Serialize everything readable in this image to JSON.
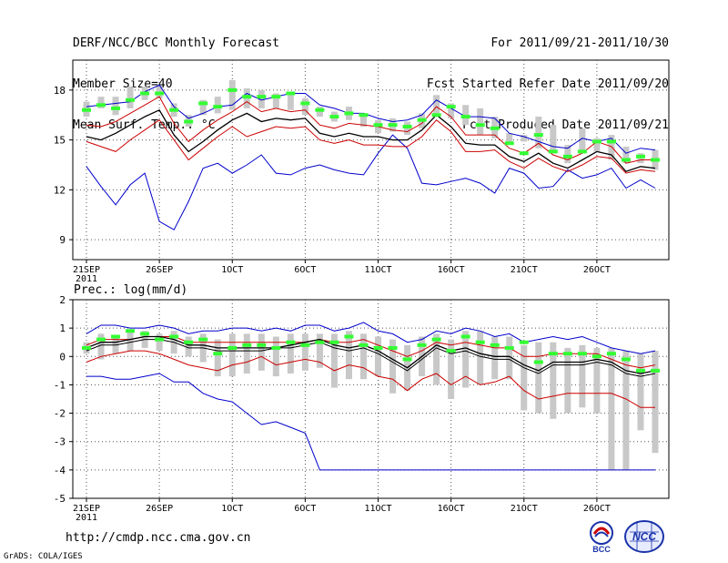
{
  "header": {
    "left": [
      "DERF/NCC/BCC Monthly Forecast",
      "Member Size=40",
      "Mean Surf. Temp.: °C"
    ],
    "right": [
      "For 2011/09/21-2011/10/30",
      "Fcst Started Refer Date 2011/09/20",
      "Fcst Produced Date 2011/09/21"
    ]
  },
  "footer": {
    "url": "http://cmdp.ncc.cma.gov.cn",
    "credit": "GrADS: COLA/IGES",
    "logo_bcc": "BCC",
    "logo_ncc": "NCC"
  },
  "colors": {
    "mean": "#000000",
    "spread": "#cc0000",
    "extreme": "#0000cc",
    "obs": "#33ff33",
    "box": "#c8c8c8"
  },
  "chart_data": [
    {
      "type": "line",
      "title": "Mean Surf. Temp.: °C",
      "xlabels": [
        "21SEP\n2011",
        "26SEP",
        "1OCT",
        "6OCT",
        "11OCT",
        "16OCT",
        "21OCT",
        "26OCT"
      ],
      "xlabel_days": [
        1,
        6,
        11,
        16,
        21,
        26,
        31,
        36
      ],
      "yticks": [
        9,
        12,
        15,
        18
      ],
      "ylim": [
        7.8,
        19.8
      ],
      "days": 40,
      "series": [
        {
          "name": "max",
          "values": [
            17.0,
            17.1,
            17.2,
            17.3,
            17.9,
            18.3,
            17.0,
            16.3,
            16.6,
            17.0,
            17.1,
            17.8,
            17.4,
            17.6,
            17.8,
            17.8,
            17.1,
            16.9,
            16.6,
            16.6,
            16.3,
            16.1,
            16.2,
            16.5,
            17.4,
            16.9,
            16.4,
            16.4,
            16.3,
            15.4,
            15.2,
            14.9,
            14.6,
            14.5,
            15.1,
            14.9,
            15.1,
            14.2,
            14.5,
            14.4
          ]
        },
        {
          "name": "upper",
          "values": [
            15.9,
            15.8,
            16.1,
            16.6,
            17.1,
            17.6,
            16.0,
            14.9,
            15.6,
            16.2,
            16.7,
            17.3,
            16.7,
            16.9,
            16.7,
            16.8,
            15.9,
            15.7,
            16.0,
            15.9,
            15.8,
            15.6,
            15.5,
            16.0,
            17.0,
            16.4,
            15.3,
            15.3,
            15.3,
            14.5,
            14.2,
            14.8,
            14.1,
            13.8,
            14.2,
            14.9,
            14.6,
            13.6,
            13.8,
            13.8
          ]
        },
        {
          "name": "mean",
          "values": [
            15.2,
            15.0,
            15.4,
            15.9,
            16.4,
            16.8,
            15.3,
            14.3,
            14.9,
            15.6,
            16.2,
            16.6,
            16.1,
            16.3,
            16.2,
            16.3,
            15.4,
            15.2,
            15.4,
            15.2,
            15.2,
            15.0,
            15.0,
            15.6,
            16.5,
            15.8,
            14.8,
            14.7,
            14.7,
            14.0,
            13.7,
            14.2,
            13.6,
            13.3,
            13.8,
            14.3,
            14.1,
            13.1,
            13.4,
            13.3
          ]
        },
        {
          "name": "lower",
          "values": [
            14.9,
            14.6,
            14.3,
            15.0,
            15.6,
            16.2,
            15.0,
            13.8,
            14.5,
            15.2,
            15.8,
            15.2,
            15.5,
            15.8,
            15.7,
            15.8,
            15.0,
            14.8,
            15.0,
            14.7,
            14.7,
            14.6,
            14.6,
            15.2,
            16.2,
            15.5,
            14.3,
            14.3,
            14.4,
            13.7,
            13.3,
            13.9,
            13.4,
            13.1,
            13.5,
            14.0,
            13.9,
            13.0,
            13.2,
            13.1
          ]
        },
        {
          "name": "min",
          "values": [
            13.4,
            12.2,
            11.1,
            12.3,
            13.0,
            10.1,
            9.6,
            11.3,
            13.3,
            13.6,
            13.0,
            13.5,
            14.1,
            13.0,
            12.9,
            13.3,
            13.5,
            13.2,
            13.0,
            12.9,
            14.2,
            15.3,
            14.5,
            12.4,
            12.3,
            12.5,
            12.7,
            12.4,
            11.8,
            13.3,
            13.0,
            12.1,
            12.2,
            13.2,
            12.7,
            12.9,
            13.3,
            12.1,
            12.6,
            12.1
          ]
        },
        {
          "name": "obs",
          "values": [
            16.8,
            17.1,
            16.9,
            17.4,
            17.8,
            17.8,
            16.8,
            16.1,
            17.2,
            17.0,
            18.0,
            17.6,
            17.6,
            17.6,
            17.8,
            17.2,
            16.8,
            16.4,
            16.6,
            16.5,
            15.9,
            15.9,
            15.8,
            16.2,
            16.5,
            17.0,
            16.4,
            15.9,
            15.7,
            14.8,
            14.2,
            15.3,
            14.3,
            14.0,
            14.3,
            14.9,
            14.9,
            13.8,
            14.0,
            13.8
          ]
        },
        {
          "name": "box_low",
          "values": [
            16.4,
            16.9,
            16.5,
            16.9,
            17.4,
            17.5,
            16.4,
            15.8,
            16.5,
            16.6,
            16.8,
            16.9,
            16.9,
            16.9,
            16.8,
            16.5,
            16.4,
            16.1,
            16.2,
            15.8,
            15.4,
            15.5,
            15.3,
            15.7,
            16.6,
            16.3,
            15.9,
            15.3,
            15.1,
            14.7,
            14.9,
            14.5,
            14.2,
            13.6,
            14.3,
            14.3,
            13.8,
            13.6,
            13.6,
            13.2
          ]
        },
        {
          "name": "box_high",
          "values": [
            17.3,
            17.6,
            17.6,
            18.2,
            18.2,
            18.3,
            17.2,
            16.5,
            17.4,
            17.6,
            18.6,
            18.1,
            18.0,
            17.8,
            17.9,
            17.5,
            17.0,
            16.7,
            17.0,
            16.6,
            16.2,
            16.3,
            16.1,
            16.6,
            17.7,
            17.2,
            17.1,
            16.9,
            16.4,
            15.4,
            15.3,
            16.4,
            15.9,
            14.7,
            15.7,
            15.1,
            15.3,
            14.6,
            14.2,
            14.4
          ]
        }
      ]
    },
    {
      "type": "line",
      "title": "Prec.: log(mm/d)",
      "xlabels": [
        "21SEP\n2011",
        "26SEP",
        "1OCT",
        "6OCT",
        "11OCT",
        "16OCT",
        "21OCT",
        "26OCT"
      ],
      "xlabel_days": [
        1,
        6,
        11,
        16,
        21,
        26,
        31,
        36
      ],
      "yticks": [
        -5,
        -4,
        -3,
        -2,
        -1,
        0,
        1,
        2
      ],
      "ylim": [
        -5,
        2
      ],
      "days": 40,
      "series": [
        {
          "name": "max",
          "values": [
            0.8,
            1.1,
            1.1,
            1.0,
            1.0,
            1.1,
            1.0,
            0.8,
            0.9,
            0.9,
            1.0,
            1.0,
            0.9,
            1.0,
            0.9,
            1.1,
            1.1,
            0.9,
            1.0,
            1.2,
            0.9,
            0.8,
            0.5,
            0.6,
            0.9,
            0.8,
            1.0,
            0.9,
            0.7,
            0.8,
            0.5,
            0.6,
            0.7,
            0.6,
            0.7,
            0.5,
            0.3,
            0.2,
            0.1,
            0.2
          ]
        },
        {
          "name": "upper",
          "values": [
            0.4,
            0.6,
            0.6,
            0.6,
            0.7,
            0.7,
            0.7,
            0.5,
            0.5,
            0.5,
            0.5,
            0.5,
            0.5,
            0.5,
            0.5,
            0.5,
            0.6,
            0.5,
            0.5,
            0.6,
            0.4,
            0.2,
            0.0,
            0.2,
            0.5,
            0.4,
            0.5,
            0.4,
            0.3,
            0.3,
            0.0,
            0.0,
            0.1,
            0.1,
            0.1,
            0.1,
            -0.1,
            -0.3,
            -0.4,
            -0.3
          ]
        },
        {
          "name": "mean",
          "values": [
            0.3,
            0.5,
            0.5,
            0.6,
            0.7,
            0.7,
            0.6,
            0.4,
            0.4,
            0.3,
            0.3,
            0.3,
            0.3,
            0.3,
            0.4,
            0.5,
            0.6,
            0.4,
            0.3,
            0.4,
            0.2,
            -0.1,
            -0.4,
            0.0,
            0.4,
            0.2,
            0.3,
            0.1,
            0.0,
            0.0,
            -0.3,
            -0.5,
            -0.2,
            -0.2,
            -0.2,
            -0.1,
            -0.2,
            -0.5,
            -0.6,
            -0.5
          ]
        },
        {
          "name": "lower",
          "values": [
            0.2,
            0.4,
            0.4,
            0.5,
            0.6,
            0.6,
            0.5,
            0.3,
            0.3,
            0.2,
            0.2,
            0.2,
            0.2,
            0.3,
            0.3,
            0.4,
            0.5,
            0.3,
            0.2,
            0.3,
            0.1,
            -0.2,
            -0.5,
            -0.1,
            0.3,
            0.1,
            0.2,
            0.0,
            -0.1,
            -0.1,
            -0.4,
            -0.6,
            -0.3,
            -0.3,
            -0.3,
            -0.2,
            -0.3,
            -0.6,
            -0.7,
            -0.6
          ]
        },
        {
          "name": "spread_low",
          "values": [
            -0.2,
            0.0,
            0.1,
            0.2,
            0.2,
            0.1,
            -0.1,
            -0.3,
            -0.4,
            -0.5,
            -0.3,
            -0.2,
            0.0,
            -0.3,
            -0.2,
            -0.1,
            -0.2,
            -0.5,
            -0.3,
            -0.4,
            -0.7,
            -0.8,
            -1.2,
            -0.8,
            -0.6,
            -1.0,
            -0.7,
            -1.0,
            -0.9,
            -0.7,
            -1.2,
            -1.5,
            -1.4,
            -1.3,
            -1.3,
            -1.3,
            -1.3,
            -1.5,
            -1.8,
            -1.8
          ]
        },
        {
          "name": "min",
          "values": [
            -0.7,
            -0.7,
            -0.8,
            -0.8,
            -0.7,
            -0.6,
            -0.9,
            -0.9,
            -1.3,
            -1.5,
            -1.6,
            -2.0,
            -2.4,
            -2.3,
            -2.5,
            -2.7,
            -4.0,
            -4.0,
            -4.0,
            -4.0,
            -4.0,
            -4.0,
            -4.0,
            -4.0,
            -4.0,
            -4.0,
            -4.0,
            -4.0,
            -4.0,
            -4.0,
            -4.0,
            -4.0,
            -4.0,
            -4.0,
            -4.0,
            -4.0,
            -4.0,
            -4.0,
            -4.0,
            -4.0
          ]
        },
        {
          "name": "obs",
          "values": [
            0.3,
            0.6,
            0.7,
            0.9,
            0.8,
            0.6,
            0.7,
            0.5,
            0.6,
            0.1,
            0.3,
            0.4,
            0.4,
            0.3,
            0.5,
            0.4,
            0.5,
            0.5,
            0.7,
            0.4,
            0.3,
            0.3,
            -0.1,
            0.4,
            0.6,
            0.2,
            0.7,
            0.5,
            0.4,
            0.3,
            0.5,
            -0.2,
            0.1,
            0.1,
            0.1,
            0.0,
            0.1,
            -0.1,
            -0.5,
            -0.5
          ]
        },
        {
          "name": "box_low",
          "values": [
            0.1,
            -0.1,
            0.1,
            0.2,
            0.3,
            0.2,
            0.1,
            0.0,
            -0.2,
            -0.7,
            -0.7,
            -0.6,
            -0.5,
            -0.7,
            -0.6,
            -0.5,
            -0.4,
            -1.1,
            -0.8,
            -0.8,
            -0.7,
            -1.3,
            -1.2,
            -0.7,
            -1.0,
            -1.5,
            -1.1,
            -1.0,
            -0.8,
            -0.8,
            -1.9,
            -2.0,
            -2.2,
            -2.0,
            -1.8,
            -2.0,
            -4.0,
            -4.0,
            -2.6,
            -3.4
          ]
        },
        {
          "name": "box_high",
          "values": [
            0.5,
            0.8,
            0.7,
            0.9,
            0.9,
            0.8,
            0.9,
            0.7,
            0.8,
            0.6,
            0.8,
            0.8,
            0.8,
            0.7,
            0.8,
            0.8,
            0.8,
            0.8,
            0.9,
            0.8,
            0.7,
            0.6,
            0.4,
            0.7,
            0.8,
            0.6,
            0.9,
            0.9,
            0.7,
            0.7,
            0.4,
            0.5,
            0.5,
            0.3,
            0.4,
            0.3,
            0.3,
            0.2,
            0.1,
            0.2
          ]
        }
      ]
    }
  ]
}
